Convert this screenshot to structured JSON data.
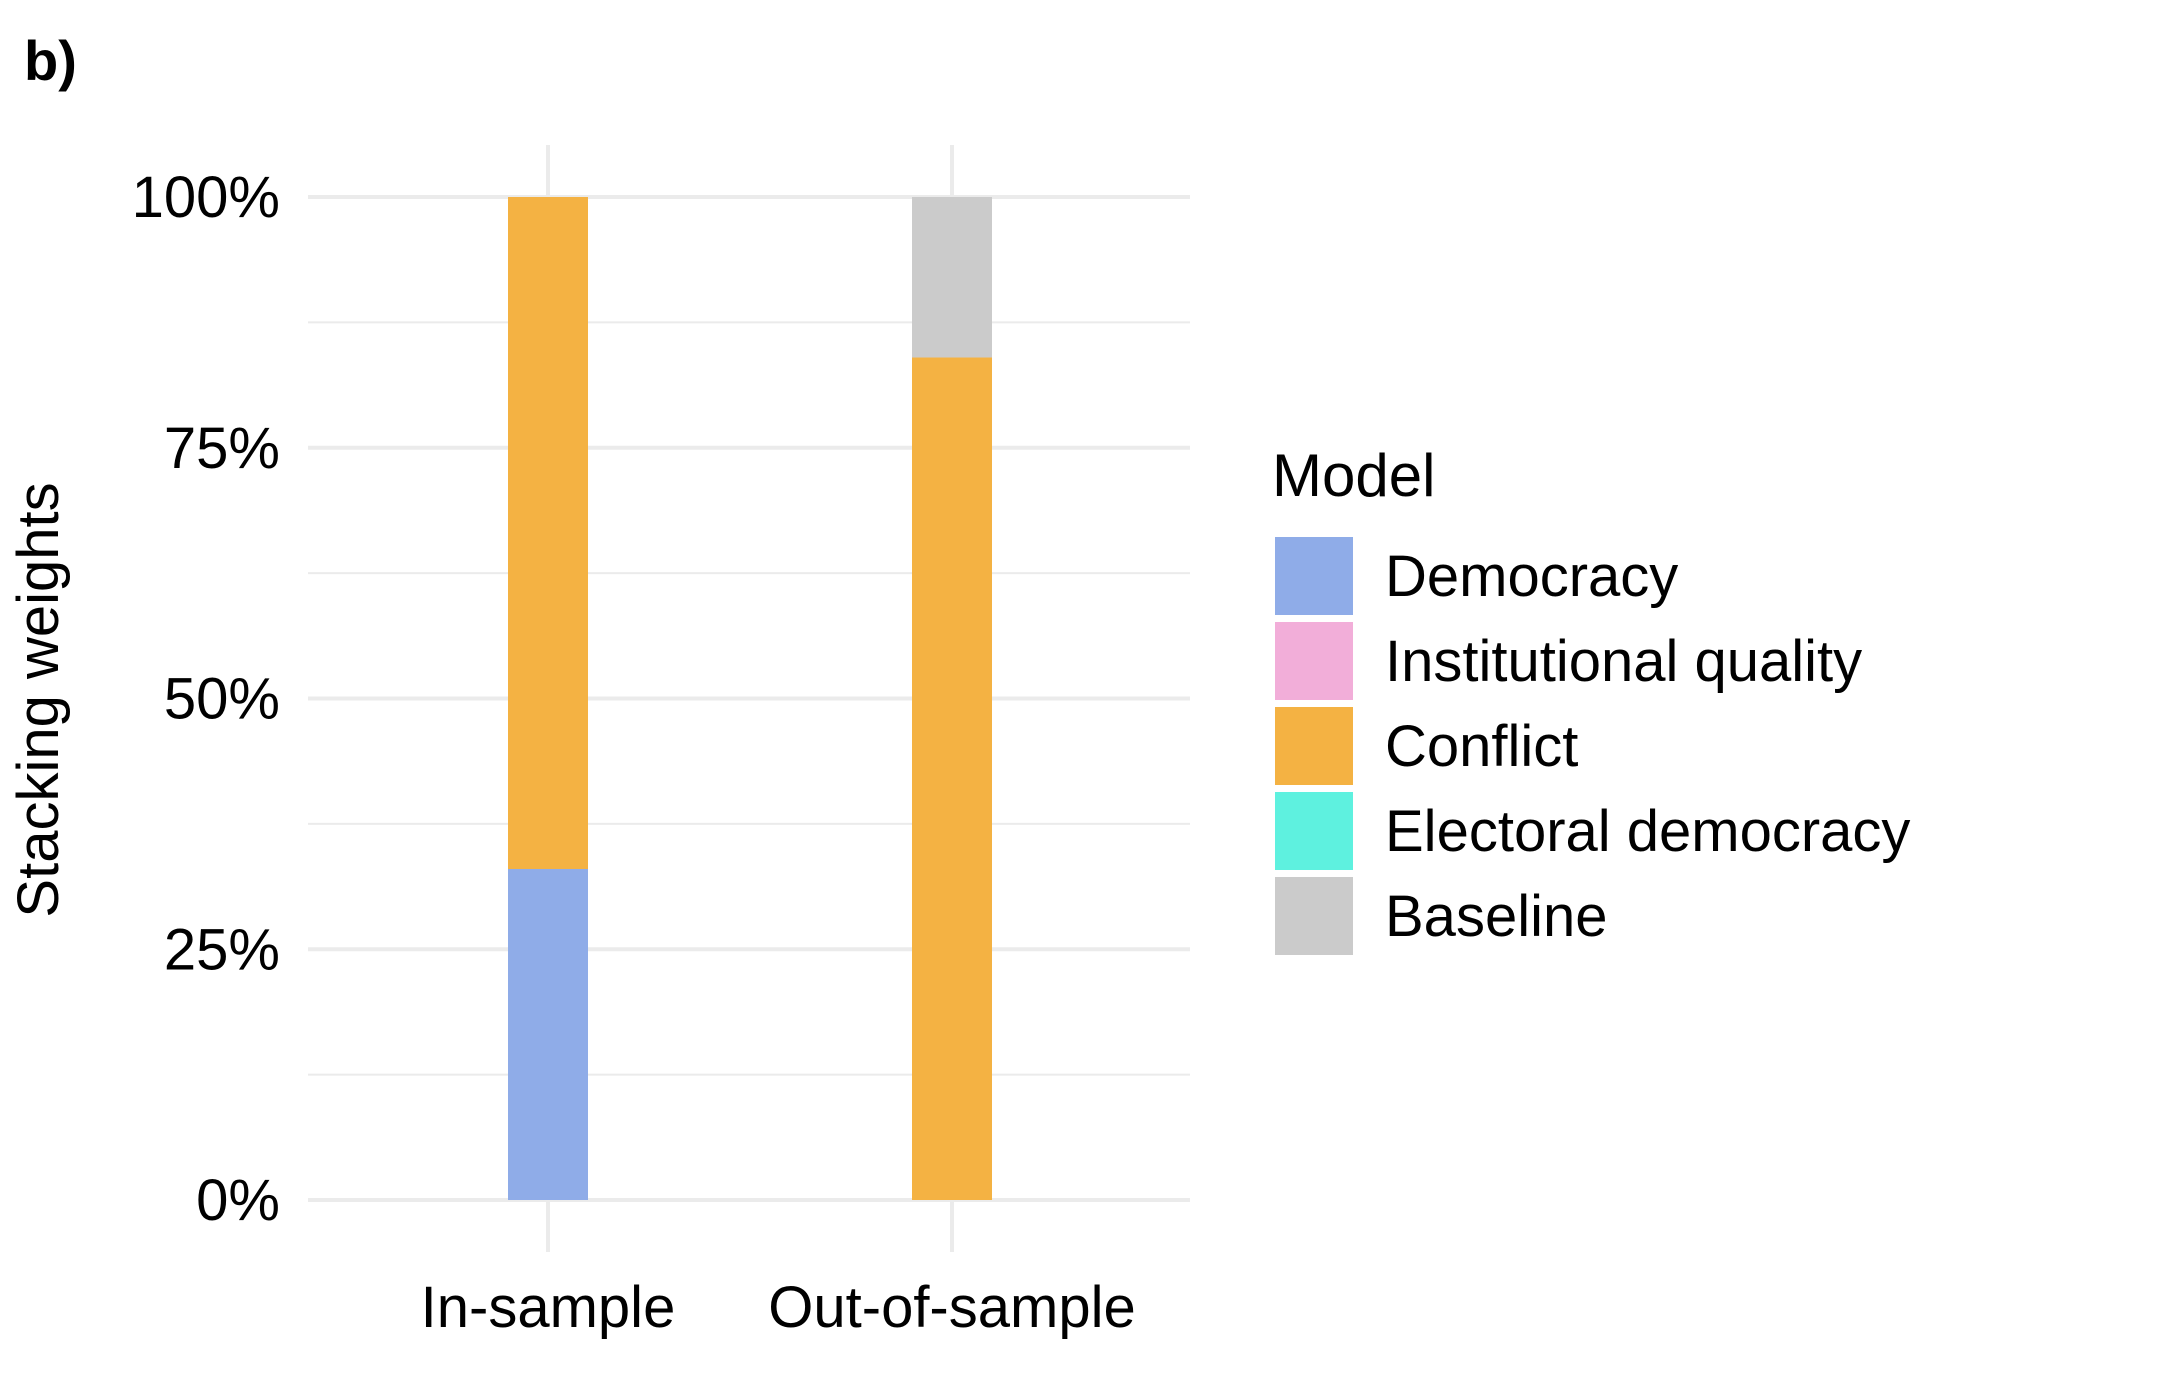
{
  "panel_label": "b)",
  "chart_data": {
    "type": "bar",
    "stacked": true,
    "categories": [
      "In-sample",
      "Out-of-sample"
    ],
    "ylabel": "Stacking weights",
    "xlabel": "",
    "ylim": [
      0,
      1
    ],
    "yticks": [
      0,
      0.25,
      0.5,
      0.75,
      1.0
    ],
    "ytick_labels": [
      "0%",
      "25%",
      "50%",
      "75%",
      "100%"
    ],
    "grid": true,
    "legend": {
      "title": "Model",
      "placement": "right"
    },
    "series": [
      {
        "name": "Democracy",
        "color": "#8FACE8",
        "values": [
          0.33,
          0.0
        ]
      },
      {
        "name": "Institutional quality",
        "color": "#F2AED9",
        "values": [
          0.0,
          0.0
        ]
      },
      {
        "name": "Conflict",
        "color": "#F4B243",
        "values": [
          0.67,
          0.84
        ]
      },
      {
        "name": "Electoral democracy",
        "color": "#5EF1DF",
        "values": [
          0.0,
          0.0
        ]
      },
      {
        "name": "Baseline",
        "color": "#CBCBCB",
        "values": [
          0.0,
          0.16
        ]
      }
    ],
    "stack_order_bottom_to_top": [
      "Democracy",
      "Institutional quality",
      "Electoral democracy",
      "Conflict",
      "Baseline"
    ]
  }
}
